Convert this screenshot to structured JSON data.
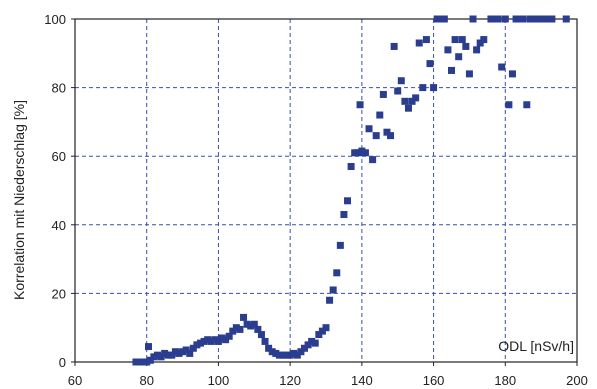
{
  "chart_data": {
    "type": "scatter",
    "title": "",
    "ylabel": "Korrelation mit Niederschlag [%]",
    "xlabel_inner": "ODL [nSv/h]",
    "xlim": [
      60,
      200
    ],
    "ylim": [
      0,
      100
    ],
    "xticks": [
      60,
      80,
      100,
      120,
      140,
      160,
      180,
      200
    ],
    "yticks": [
      0,
      20,
      40,
      60,
      80,
      100
    ],
    "grid": true,
    "colors": {
      "marker": "#2a3d8f",
      "grid": "#3a4fb0",
      "axis": "#222222"
    },
    "series": [
      {
        "marker": "square",
        "points": [
          [
            77,
            0
          ],
          [
            78,
            0
          ],
          [
            79,
            0
          ],
          [
            80,
            0
          ],
          [
            80.5,
            4.5
          ],
          [
            81,
            0.5
          ],
          [
            82,
            1.5
          ],
          [
            83,
            2
          ],
          [
            84,
            1.5
          ],
          [
            85,
            2.5
          ],
          [
            86,
            2
          ],
          [
            87,
            2
          ],
          [
            88,
            3
          ],
          [
            89,
            2.5
          ],
          [
            90,
            3
          ],
          [
            91,
            3.5
          ],
          [
            92,
            2.5
          ],
          [
            93,
            4
          ],
          [
            94,
            5
          ],
          [
            95,
            5.5
          ],
          [
            96,
            6
          ],
          [
            97,
            6.5
          ],
          [
            98,
            6
          ],
          [
            99,
            6.5
          ],
          [
            100,
            6
          ],
          [
            101,
            7
          ],
          [
            102,
            6.5
          ],
          [
            103,
            7.5
          ],
          [
            104,
            9
          ],
          [
            105,
            10
          ],
          [
            106,
            9.5
          ],
          [
            107,
            13
          ],
          [
            108,
            11
          ],
          [
            109,
            10.5
          ],
          [
            110,
            11
          ],
          [
            111,
            9.5
          ],
          [
            112,
            8
          ],
          [
            113,
            6
          ],
          [
            114,
            4
          ],
          [
            115,
            3
          ],
          [
            116,
            2.5
          ],
          [
            117,
            2
          ],
          [
            118,
            2
          ],
          [
            119,
            2
          ],
          [
            120,
            2
          ],
          [
            121,
            2.5
          ],
          [
            122,
            2
          ],
          [
            123,
            3
          ],
          [
            124,
            4
          ],
          [
            125,
            5
          ],
          [
            126,
            6
          ],
          [
            127,
            5.5
          ],
          [
            128,
            8
          ],
          [
            129,
            9
          ],
          [
            130,
            10
          ],
          [
            131,
            18
          ],
          [
            132,
            21
          ],
          [
            133,
            26
          ],
          [
            134,
            34
          ],
          [
            135,
            43
          ],
          [
            136,
            47
          ],
          [
            137,
            57
          ],
          [
            138,
            61
          ],
          [
            139,
            61
          ],
          [
            139.5,
            75
          ],
          [
            140,
            61.5
          ],
          [
            141,
            61
          ],
          [
            142,
            68
          ],
          [
            143,
            59
          ],
          [
            144,
            66
          ],
          [
            145,
            72
          ],
          [
            146,
            78
          ],
          [
            147,
            67
          ],
          [
            148,
            66
          ],
          [
            149,
            92
          ],
          [
            150,
            79
          ],
          [
            151,
            82
          ],
          [
            152,
            76
          ],
          [
            153,
            74
          ],
          [
            154,
            76
          ],
          [
            155,
            77
          ],
          [
            156,
            93
          ],
          [
            157,
            80
          ],
          [
            158,
            94
          ],
          [
            159,
            87
          ],
          [
            160,
            80
          ],
          [
            161,
            100
          ],
          [
            162,
            100
          ],
          [
            163,
            100
          ],
          [
            164,
            91
          ],
          [
            165,
            85
          ],
          [
            166,
            94
          ],
          [
            167,
            89
          ],
          [
            168,
            94
          ],
          [
            169,
            92
          ],
          [
            170,
            84
          ],
          [
            171,
            100
          ],
          [
            172,
            91
          ],
          [
            173,
            93
          ],
          [
            174,
            94
          ],
          [
            176,
            100
          ],
          [
            177,
            100
          ],
          [
            178,
            100
          ],
          [
            179,
            86
          ],
          [
            180,
            100
          ],
          [
            181,
            75
          ],
          [
            182,
            84
          ],
          [
            183,
            100
          ],
          [
            184,
            100
          ],
          [
            185,
            100
          ],
          [
            186,
            75
          ],
          [
            187,
            100
          ],
          [
            188,
            100
          ],
          [
            189,
            100
          ],
          [
            190,
            100
          ],
          [
            191,
            100
          ],
          [
            192,
            100
          ],
          [
            193,
            100
          ],
          [
            197,
            100
          ]
        ]
      }
    ]
  }
}
